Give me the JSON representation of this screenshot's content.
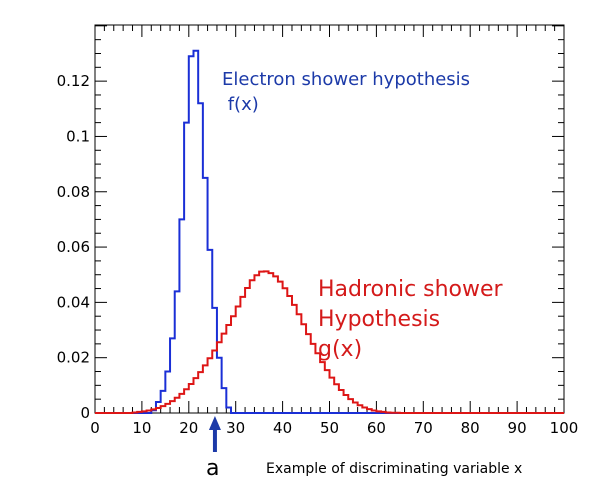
{
  "chart_data": {
    "type": "line",
    "title": "",
    "xlabel": "Example of discriminating variable x",
    "ylabel": "",
    "xlim": [
      0,
      100
    ],
    "ylim": [
      0,
      0.1403
    ],
    "grid": false,
    "legend": "none",
    "x_ticks": [
      "0",
      "10",
      "20",
      "30",
      "40",
      "50",
      "60",
      "70",
      "80",
      "90",
      "100"
    ],
    "y_ticks": [
      "0",
      "0.02",
      "0.04",
      "0.06",
      "0.08",
      "0.1",
      "0.12"
    ],
    "bin_width": 1,
    "series": [
      {
        "name": "Electron shower hypothesis f(x)",
        "color": "#1a2fd6",
        "x": [
          12,
          13,
          14,
          15,
          16,
          17,
          18,
          19,
          20,
          21,
          22,
          23,
          24,
          25,
          26,
          27,
          28
        ],
        "values": [
          0.001,
          0.004,
          0.008,
          0.015,
          0.027,
          0.044,
          0.07,
          0.105,
          0.129,
          0.131,
          0.112,
          0.085,
          0.059,
          0.038,
          0.02,
          0.009,
          0.002
        ]
      },
      {
        "name": "Hadronic shower Hypothesis g(x)",
        "color": "#dd1515",
        "x": [
          8,
          9,
          10,
          11,
          12,
          13,
          14,
          15,
          16,
          17,
          18,
          19,
          20,
          21,
          22,
          23,
          24,
          25,
          26,
          27,
          28,
          29,
          30,
          31,
          32,
          33,
          34,
          35,
          36,
          37,
          38,
          39,
          40,
          41,
          42,
          43,
          44,
          45,
          46,
          47,
          48,
          49,
          50,
          51,
          52,
          53,
          54,
          55,
          56,
          57,
          58,
          59,
          60,
          61,
          62,
          63,
          64,
          65,
          66
        ],
        "values": [
          0.0002,
          0.0004,
          0.0006,
          0.0009,
          0.0013,
          0.0018,
          0.0025,
          0.0033,
          0.0043,
          0.0055,
          0.0069,
          0.0086,
          0.0105,
          0.0126,
          0.0148,
          0.0172,
          0.0198,
          0.0226,
          0.0256,
          0.0287,
          0.0318,
          0.035,
          0.0385,
          0.042,
          0.0452,
          0.048,
          0.0498,
          0.0511,
          0.0512,
          0.0506,
          0.0494,
          0.0475,
          0.0451,
          0.0423,
          0.0391,
          0.0357,
          0.0321,
          0.0285,
          0.025,
          0.0216,
          0.0184,
          0.0155,
          0.0128,
          0.0104,
          0.0083,
          0.0065,
          0.005,
          0.0038,
          0.0028,
          0.002,
          0.0014,
          0.0009,
          0.0006,
          0.0004,
          0.0002,
          0.0001,
          0.0001,
          0.0,
          0.0
        ]
      }
    ],
    "annotations": {
      "electron_line1": "Electron shower hypothesis",
      "electron_line2": " f(x)",
      "hadron_line1": "Hadronic shower",
      "hadron_line2": "Hypothesis",
      "hadron_line3": "g(x)",
      "cut_label": "a",
      "cut_value": 26
    }
  }
}
